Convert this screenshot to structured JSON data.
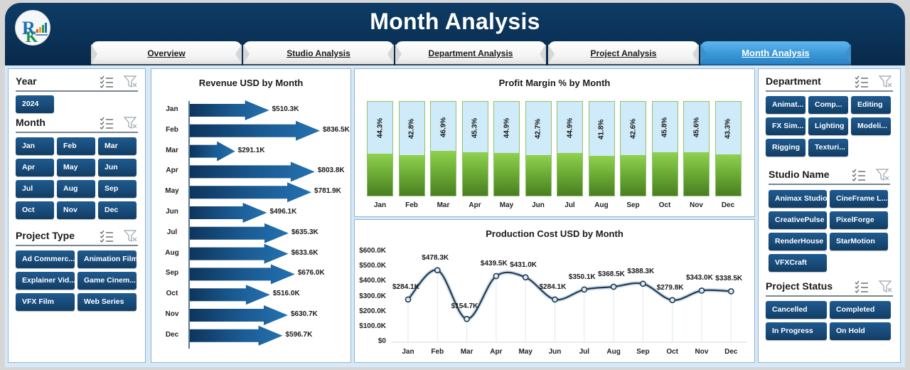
{
  "header": {
    "title": "Month Analysis",
    "logo_label": "logo"
  },
  "tabs": [
    {
      "label": "Overview",
      "active": false
    },
    {
      "label": "Studio Analysis",
      "active": false
    },
    {
      "label": "Department Analysis",
      "active": false
    },
    {
      "label": "Project Analysis",
      "active": false
    },
    {
      "label": "Month Analysis",
      "active": true
    }
  ],
  "left_slicers": {
    "year": {
      "title": "Year",
      "items": [
        "2024"
      ]
    },
    "month": {
      "title": "Month",
      "items": [
        "Jan",
        "Feb",
        "Mar",
        "Apr",
        "May",
        "Jun",
        "Jul",
        "Aug",
        "Sep",
        "Oct",
        "Nov",
        "Dec"
      ]
    },
    "project_type": {
      "title": "Project Type",
      "items": [
        "Ad Commerc...",
        "Animation Film",
        "Explainer Vid...",
        "Game Cinem...",
        "VFX Film",
        "Web Series"
      ]
    }
  },
  "right_slicers": {
    "department": {
      "title": "Department",
      "items": [
        "Animat...",
        "Comp...",
        "Editing",
        "FX Sim...",
        "Lighting",
        "Modeli...",
        "Rigging",
        "Texturi..."
      ]
    },
    "studio_name": {
      "title": "Studio Name",
      "items": [
        "Animax Studio",
        "CineFrame L...",
        "CreativePulse",
        "PixelForge",
        "RenderHouse",
        "StarMotion",
        "VFXCraft"
      ]
    },
    "project_status": {
      "title": "Project Status",
      "items": [
        "Cancelled",
        "Completed",
        "In Progress",
        "On Hold"
      ]
    }
  },
  "colors": {
    "header_bg": "#0b3258",
    "active_tab": "#3a98d8",
    "slicer_button": "#184b79",
    "arrow_blue": "#1f6aa5",
    "bar_green": "#7cc242",
    "bar_bg": "#cfe9f7",
    "line": "#1e3a52"
  },
  "chart_data": [
    {
      "type": "bar",
      "orientation": "horizontal",
      "title": "Revenue USD by Month",
      "categories": [
        "Jan",
        "Feb",
        "Mar",
        "Apr",
        "May",
        "Jun",
        "Jul",
        "Aug",
        "Sep",
        "Oct",
        "Nov",
        "Dec"
      ],
      "values": [
        510.3,
        836.5,
        291.1,
        803.8,
        781.9,
        496.1,
        635.3,
        633.6,
        676.0,
        516.0,
        630.7,
        596.7
      ],
      "labels": [
        "$510.3K",
        "$836.5K",
        "$291.1K",
        "$803.8K",
        "$781.9K",
        "$496.1K",
        "$635.3K",
        "$633.6K",
        "$676.0K",
        "$516.0K",
        "$630.7K",
        "$596.7K"
      ],
      "unit": "USD thousands",
      "xlabel": "",
      "ylabel": "",
      "grid": false,
      "legend": "none"
    },
    {
      "type": "bar",
      "title": "Profit Margin % by Month",
      "categories": [
        "Jan",
        "Feb",
        "Mar",
        "Apr",
        "May",
        "Jun",
        "Jul",
        "Aug",
        "Sep",
        "Oct",
        "Nov",
        "Dec"
      ],
      "values": [
        44.3,
        42.8,
        46.9,
        45.3,
        44.9,
        42.7,
        44.9,
        41.8,
        42.6,
        45.8,
        45.6,
        43.3
      ],
      "labels": [
        "44.3%",
        "42.8%",
        "46.9%",
        "45.3%",
        "44.9%",
        "42.7%",
        "44.9%",
        "41.8%",
        "42.6%",
        "45.8%",
        "45.6%",
        "43.3%"
      ],
      "ylim": [
        0,
        100
      ],
      "xlabel": "",
      "ylabel": "",
      "grid": false,
      "legend": "none"
    },
    {
      "type": "line",
      "title": "Production Cost USD by Month",
      "categories": [
        "Jan",
        "Feb",
        "Mar",
        "Apr",
        "May",
        "Jun",
        "Jul",
        "Aug",
        "Sep",
        "Oct",
        "Nov",
        "Dec"
      ],
      "values": [
        284.1,
        478.3,
        154.7,
        439.5,
        431.0,
        284.1,
        350.1,
        368.5,
        388.3,
        279.8,
        343.0,
        338.5
      ],
      "labels": [
        "$284.1K",
        "$478.3K",
        "$154.7K",
        "$439.5K",
        "$431.0K",
        "$284.1K",
        "$350.1K",
        "$368.5K",
        "$388.3K",
        "$279.8K",
        "$343.0K",
        "$338.5K"
      ],
      "yticks": [
        "$0",
        "$100.0K",
        "$200.0K",
        "$300.0K",
        "$400.0K",
        "$500.0K",
        "$600.0K"
      ],
      "ylim": [
        0,
        600
      ],
      "xlabel": "",
      "ylabel": "",
      "grid": "vertical",
      "legend": "none"
    }
  ]
}
